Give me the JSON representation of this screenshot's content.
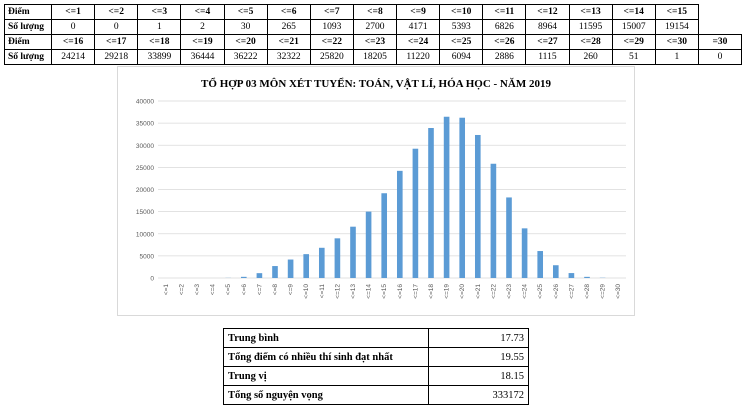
{
  "score_table": {
    "rows": [
      {
        "kind": "head",
        "label": "Điểm",
        "cells": [
          "<=1",
          "<=2",
          "<=3",
          "<=4",
          "<=5",
          "<=6",
          "<=7",
          "<=8",
          "<=9",
          "<=10",
          "<=11",
          "<=12",
          "<=13",
          "<=14",
          "<=15"
        ]
      },
      {
        "kind": "data",
        "label": "Số lượng",
        "cells": [
          "0",
          "0",
          "1",
          "2",
          "30",
          "265",
          "1093",
          "2700",
          "4171",
          "5393",
          "6826",
          "8964",
          "11595",
          "15007",
          "19154"
        ]
      },
      {
        "kind": "head",
        "label": "Điểm",
        "cells": [
          "<=16",
          "<=17",
          "<=18",
          "<=19",
          "<=20",
          "<=21",
          "<=22",
          "<=23",
          "<=24",
          "<=25",
          "<=26",
          "<=27",
          "<=28",
          "<=29",
          "<=30",
          "=30"
        ]
      },
      {
        "kind": "data",
        "label": "Số lượng",
        "cells": [
          "24214",
          "29218",
          "33899",
          "36444",
          "36222",
          "32322",
          "25820",
          "18205",
          "11220",
          "6094",
          "2886",
          "1115",
          "260",
          "51",
          "1",
          "0"
        ]
      }
    ]
  },
  "chart_data": {
    "type": "bar",
    "title": "TỔ HỢP 03 MÔN XÉT TUYỂN: TOÁN, VẬT LÍ, HÓA HỌC - NĂM 2019",
    "categories": [
      "<=1",
      "<=2",
      "<=3",
      "<=4",
      "<=5",
      "<=6",
      "<=7",
      "<=8",
      "<=9",
      "<=10",
      "<=11",
      "<=12",
      "<=13",
      "<=14",
      "<=15",
      "<=16",
      "<=17",
      "<=18",
      "<=19",
      "<=20",
      "<=21",
      "<=22",
      "<=23",
      "<=24",
      "<=25",
      "<=26",
      "<=27",
      "<=28",
      "<=29",
      "<=30"
    ],
    "values": [
      0,
      0,
      1,
      2,
      30,
      265,
      1093,
      2700,
      4171,
      5393,
      6826,
      8964,
      11595,
      15007,
      19154,
      24214,
      29218,
      33899,
      36444,
      36222,
      32322,
      25820,
      18205,
      11220,
      6094,
      2886,
      1115,
      260,
      51,
      1
    ],
    "ylim": [
      0,
      40000
    ],
    "yticks": [
      0,
      5000,
      10000,
      15000,
      20000,
      25000,
      30000,
      35000,
      40000
    ],
    "grid": true,
    "color": "#5b9bd5",
    "gridColor": "#d9d9d9",
    "labelColor": "#595959"
  },
  "stats": [
    {
      "label": "Trung bình",
      "value": "17.73"
    },
    {
      "label": "Tổng điểm có nhiều thí sinh đạt nhất",
      "value": "19.55"
    },
    {
      "label": "Trung vị",
      "value": "18.15"
    },
    {
      "label": "Tổng số nguyện vọng",
      "value": "333172"
    }
  ]
}
